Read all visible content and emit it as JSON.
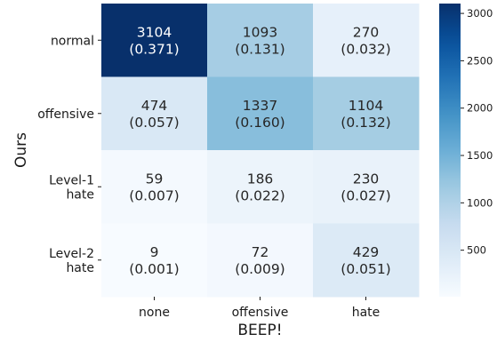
{
  "chart_data": {
    "type": "heatmap",
    "title": "",
    "xlabel": "BEEP!",
    "ylabel": "Ours",
    "x_categories": [
      "none",
      "offensive",
      "hate"
    ],
    "y_categories": [
      [
        "normal"
      ],
      [
        "offensive"
      ],
      [
        "Level-1",
        "hate"
      ],
      [
        "Level-2",
        "hate"
      ]
    ],
    "counts": [
      [
        3104,
        1093,
        270
      ],
      [
        474,
        1337,
        1104
      ],
      [
        59,
        186,
        230
      ],
      [
        9,
        72,
        429
      ]
    ],
    "fractions": [
      [
        "(0.371)",
        "(0.131)",
        "(0.032)"
      ],
      [
        "(0.057)",
        "(0.160)",
        "(0.132)"
      ],
      [
        "(0.007)",
        "(0.022)",
        "(0.027)"
      ],
      [
        "(0.001)",
        "(0.009)",
        "(0.051)"
      ]
    ],
    "colormap": "Blues",
    "colorbar": {
      "vmin": 9,
      "vmax": 3104,
      "ticks": [
        500,
        1000,
        1500,
        2000,
        2500,
        3000
      ]
    }
  }
}
